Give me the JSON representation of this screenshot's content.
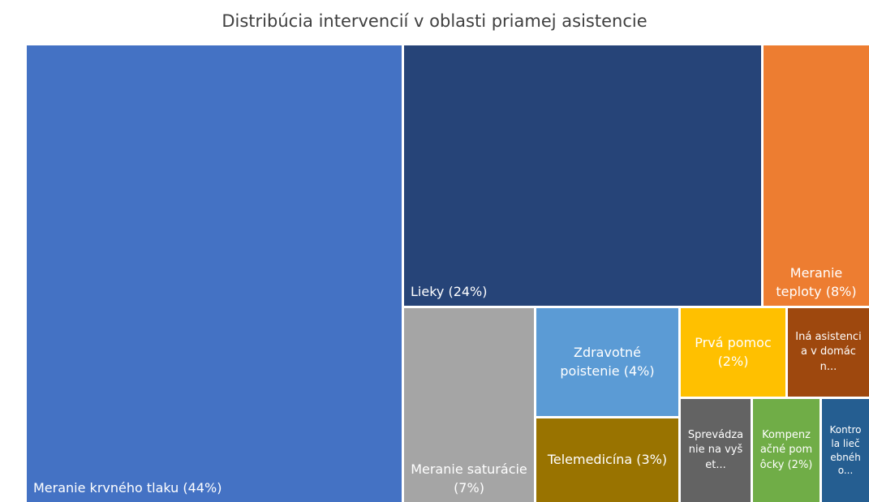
{
  "chart_data": {
    "type": "treemap",
    "title": "Distribúcia intervencií v oblasti priamej asistencie",
    "categories": [
      "Meranie krvného tlaku (44%)",
      "Lieky (24%)",
      "Meranie teploty (8%)",
      "Meranie saturácie (7%)",
      "Zdravotné poistenie (4%)",
      "Telemedicína (3%)",
      "Prvá pomoc (2%)",
      "Iná asistencia v domácn...",
      "Sprevádzanie na vyšet...",
      "Kompenzačné pomôcky (2%)",
      "Kontrola liečebnéh o..."
    ],
    "values": [
      44,
      24,
      8,
      7,
      4,
      3,
      2,
      2,
      2,
      2,
      1.5
    ],
    "colors": [
      "#4472c4",
      "#264478",
      "#ed7d31",
      "#a5a5a5",
      "#5b9bd5",
      "#997300",
      "#ffc000",
      "#9e480e",
      "#636363",
      "#70ad47",
      "#255e91"
    ]
  }
}
